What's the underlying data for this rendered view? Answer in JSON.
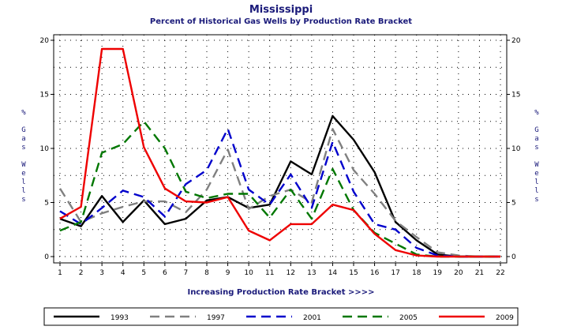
{
  "chart_data": {
    "type": "line",
    "title": "Mississippi",
    "subtitle": "Percent of Historical Gas Wells by Production Rate Bracket",
    "xlabel": "Increasing Production Rate Bracket >>>>",
    "ylabel": "% Gas Wells",
    "ylim": [
      0,
      20
    ],
    "yticks": [
      0,
      5,
      10,
      15,
      20
    ],
    "x": [
      1,
      2,
      3,
      4,
      5,
      6,
      7,
      8,
      9,
      10,
      11,
      12,
      13,
      14,
      15,
      16,
      17,
      18,
      19,
      20,
      21,
      22
    ],
    "grid": "dotted",
    "legend_position": "bottom",
    "series": [
      {
        "name": "1993",
        "color": "#000000",
        "dash": "solid",
        "values": [
          3.5,
          2.8,
          5.6,
          3.2,
          5.2,
          3.0,
          3.5,
          5.2,
          5.5,
          4.5,
          4.8,
          8.8,
          7.6,
          13.0,
          10.8,
          7.8,
          3.2,
          1.5,
          0.2,
          0.0,
          0.0,
          0.0
        ]
      },
      {
        "name": "1997",
        "color": "#808080",
        "dash": "dashed",
        "values": [
          6.3,
          3.2,
          4.0,
          4.6,
          5.1,
          5.1,
          4.1,
          6.2,
          9.9,
          4.4,
          5.6,
          6.2,
          5.0,
          11.8,
          8.0,
          5.8,
          3.3,
          1.8,
          0.4,
          0.1,
          0.0,
          0.0
        ]
      },
      {
        "name": "2001",
        "color": "#0000cc",
        "dash": "dashed",
        "values": [
          4.2,
          3.0,
          4.5,
          6.1,
          5.5,
          3.7,
          6.7,
          8.0,
          11.8,
          6.2,
          4.8,
          7.6,
          4.5,
          10.6,
          6.0,
          3.0,
          2.5,
          0.8,
          0.1,
          0.0,
          0.0,
          0.0
        ]
      },
      {
        "name": "2005",
        "color": "#007700",
        "dash": "dashed",
        "values": [
          2.4,
          3.2,
          9.6,
          10.4,
          12.5,
          10.0,
          6.0,
          5.4,
          5.8,
          5.8,
          3.6,
          6.2,
          3.5,
          8.1,
          4.3,
          2.2,
          1.2,
          0.2,
          0.0,
          0.0,
          0.0,
          0.0
        ]
      },
      {
        "name": "2009",
        "color": "#ee0000",
        "dash": "solid",
        "values": [
          3.5,
          4.6,
          19.2,
          19.2,
          10.1,
          6.3,
          5.1,
          5.0,
          5.5,
          2.4,
          1.5,
          3.0,
          3.0,
          4.8,
          4.3,
          2.1,
          0.6,
          0.1,
          0.0,
          0.0,
          0.0,
          0.0
        ]
      }
    ]
  }
}
